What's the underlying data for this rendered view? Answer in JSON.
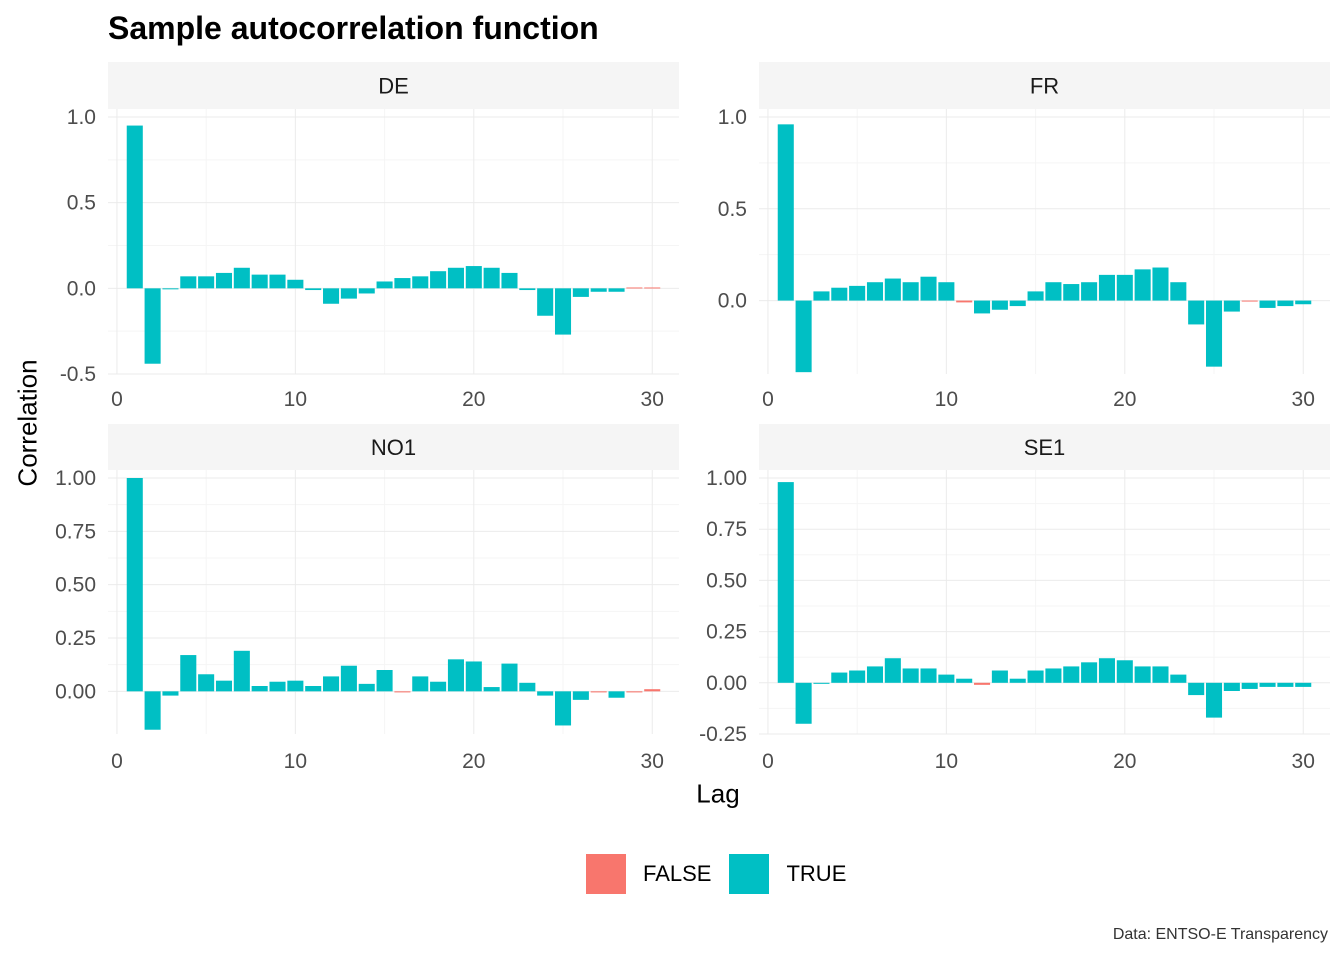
{
  "title": "Sample autocorrelation function",
  "caption": "Data: ENTSO-E Transparency",
  "colors": {
    "FALSE": "#F8766D",
    "TRUE": "#00BFC4",
    "strip": "#f5f5f5",
    "grid_major": "#ebebeb",
    "grid_minor": "#f5f5f5",
    "tick_text": "#4d4d4d"
  },
  "legend": {
    "position": "bottom",
    "items": [
      {
        "label": "FALSE",
        "key": "FALSE"
      },
      {
        "label": "TRUE",
        "key": "TRUE"
      }
    ]
  },
  "chart_data": {
    "type": "bar",
    "xlabel": "Lag",
    "ylabel": "Correlation",
    "grid": true,
    "facets_layout": "2x2",
    "x_breaks": [
      0,
      10,
      20,
      30
    ],
    "xlim": [
      -0.5,
      31.5
    ],
    "lags": [
      1,
      2,
      3,
      4,
      5,
      6,
      7,
      8,
      9,
      10,
      11,
      12,
      13,
      14,
      15,
      16,
      17,
      18,
      19,
      20,
      21,
      22,
      23,
      24,
      25,
      26,
      27,
      28,
      29,
      30
    ],
    "panels": [
      {
        "name": "DE",
        "ylim": [
          -0.5,
          1.0
        ],
        "y_breaks": [
          -0.5,
          0.0,
          0.5,
          1.0
        ],
        "y_labels": [
          "-0.5",
          "0.0",
          "0.5",
          "1.0"
        ],
        "values": [
          0.95,
          -0.44,
          0.0,
          0.07,
          0.07,
          0.09,
          0.12,
          0.08,
          0.08,
          0.05,
          -0.01,
          -0.09,
          -0.06,
          -0.03,
          0.04,
          0.06,
          0.07,
          0.1,
          0.12,
          0.13,
          0.12,
          0.09,
          -0.01,
          -0.16,
          -0.27,
          -0.05,
          -0.02,
          -0.02,
          0.005,
          0.005
        ],
        "significant": [
          true,
          true,
          true,
          true,
          true,
          true,
          true,
          true,
          true,
          true,
          true,
          true,
          true,
          true,
          true,
          true,
          true,
          true,
          true,
          true,
          true,
          true,
          true,
          true,
          true,
          true,
          true,
          true,
          false,
          false
        ]
      },
      {
        "name": "FR",
        "ylim": [
          -0.4,
          1.0
        ],
        "y_breaks": [
          0.0,
          0.5,
          1.0
        ],
        "y_labels": [
          "0.0",
          "0.5",
          "1.0"
        ],
        "values": [
          0.96,
          -0.39,
          0.05,
          0.07,
          0.08,
          0.1,
          0.12,
          0.1,
          0.13,
          0.1,
          -0.01,
          -0.07,
          -0.05,
          -0.03,
          0.05,
          0.1,
          0.09,
          0.1,
          0.14,
          0.14,
          0.17,
          0.18,
          0.1,
          -0.13,
          -0.36,
          -0.06,
          -0.005,
          -0.04,
          -0.03,
          -0.02
        ],
        "significant": [
          true,
          true,
          true,
          true,
          true,
          true,
          true,
          true,
          true,
          true,
          false,
          true,
          true,
          true,
          true,
          true,
          true,
          true,
          true,
          true,
          true,
          true,
          true,
          true,
          true,
          true,
          false,
          true,
          true,
          true
        ]
      },
      {
        "name": "NO1",
        "ylim": [
          -0.2,
          1.0
        ],
        "y_breaks": [
          0.0,
          0.25,
          0.5,
          0.75,
          1.0
        ],
        "y_labels": [
          "0.00",
          "0.25",
          "0.50",
          "0.75",
          "1.00"
        ],
        "values": [
          1.0,
          -0.18,
          -0.02,
          0.17,
          0.08,
          0.05,
          0.19,
          0.025,
          0.045,
          0.05,
          0.025,
          0.07,
          0.12,
          0.035,
          0.1,
          -0.005,
          0.07,
          0.045,
          0.15,
          0.14,
          0.02,
          0.13,
          0.04,
          -0.02,
          -0.16,
          -0.04,
          -0.005,
          -0.03,
          -0.005,
          0.01
        ],
        "significant": [
          true,
          true,
          true,
          true,
          true,
          true,
          true,
          true,
          true,
          true,
          true,
          true,
          true,
          true,
          true,
          false,
          true,
          true,
          true,
          true,
          true,
          true,
          true,
          true,
          true,
          true,
          false,
          true,
          false,
          false
        ]
      },
      {
        "name": "SE1",
        "ylim": [
          -0.25,
          1.0
        ],
        "y_breaks": [
          -0.25,
          0.0,
          0.25,
          0.5,
          0.75,
          1.0
        ],
        "y_labels": [
          "-0.25",
          "0.00",
          "0.25",
          "0.50",
          "0.75",
          "1.00"
        ],
        "values": [
          0.98,
          -0.2,
          -0.005,
          0.05,
          0.06,
          0.08,
          0.12,
          0.07,
          0.07,
          0.04,
          0.02,
          -0.01,
          0.06,
          0.02,
          0.06,
          0.07,
          0.08,
          0.1,
          0.12,
          0.11,
          0.08,
          0.08,
          0.04,
          -0.06,
          -0.17,
          -0.04,
          -0.03,
          -0.02,
          -0.02,
          -0.02
        ],
        "significant": [
          true,
          true,
          true,
          true,
          true,
          true,
          true,
          true,
          true,
          true,
          true,
          false,
          true,
          true,
          true,
          true,
          true,
          true,
          true,
          true,
          true,
          true,
          true,
          true,
          true,
          true,
          true,
          true,
          true,
          true
        ]
      }
    ]
  }
}
